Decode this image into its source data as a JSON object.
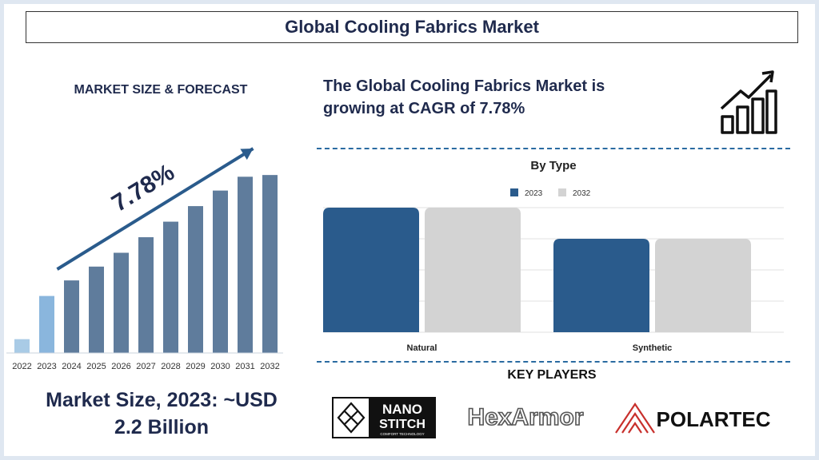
{
  "header": {
    "title": "Global Cooling Fabrics Market"
  },
  "left_panel": {
    "heading": "MARKET SIZE & FORECAST",
    "cagr_label": "7.78%",
    "market_size_line1": "Market Size, 2023: ~USD",
    "market_size_line2": "2.2 Billion"
  },
  "right_panel": {
    "cagr_line1": "The Global Cooling Fabrics Market is",
    "cagr_line2": "growing at CAGR of 7.78%",
    "icon": "growth-chart-icon",
    "key_players_title": "KEY PLAYERS",
    "key_players": [
      {
        "name": "NanoStitch",
        "line1": "NANO",
        "line2": "STITCH",
        "tagline": "COMFORT TECHNOLOGY"
      },
      {
        "name": "HexArmor",
        "text": "HexArmor"
      },
      {
        "name": "Polartec",
        "text": "POLARTEC"
      }
    ]
  },
  "chart_data": [
    {
      "type": "bar",
      "title": "",
      "categories": [
        "2022",
        "2023",
        "2024",
        "2025",
        "2026",
        "2027",
        "2028",
        "2029",
        "2030",
        "2031",
        "2032"
      ],
      "values": [
        8,
        33,
        42,
        50,
        58,
        67,
        76,
        85,
        94,
        102,
        103
      ],
      "value_unit": "relative (no axis values shown)",
      "annotation": "7.78%",
      "colors": {
        "2022": "#a9cbe6",
        "2023": "#8ab6dd",
        "default": "#5f7c9c"
      },
      "arrow_color": "#2a5b8c"
    },
    {
      "type": "bar",
      "title": "By Type",
      "categories": [
        "Natural",
        "Synthetic"
      ],
      "series": [
        {
          "name": "2023",
          "values": [
            4.0,
            3.0
          ],
          "color": "#2a5b8c"
        },
        {
          "name": "2032",
          "values": [
            4.0,
            3.0
          ],
          "color": "#d3d3d3"
        }
      ],
      "ylim": [
        0,
        4
      ],
      "grid": true,
      "legend": "top-center"
    }
  ]
}
